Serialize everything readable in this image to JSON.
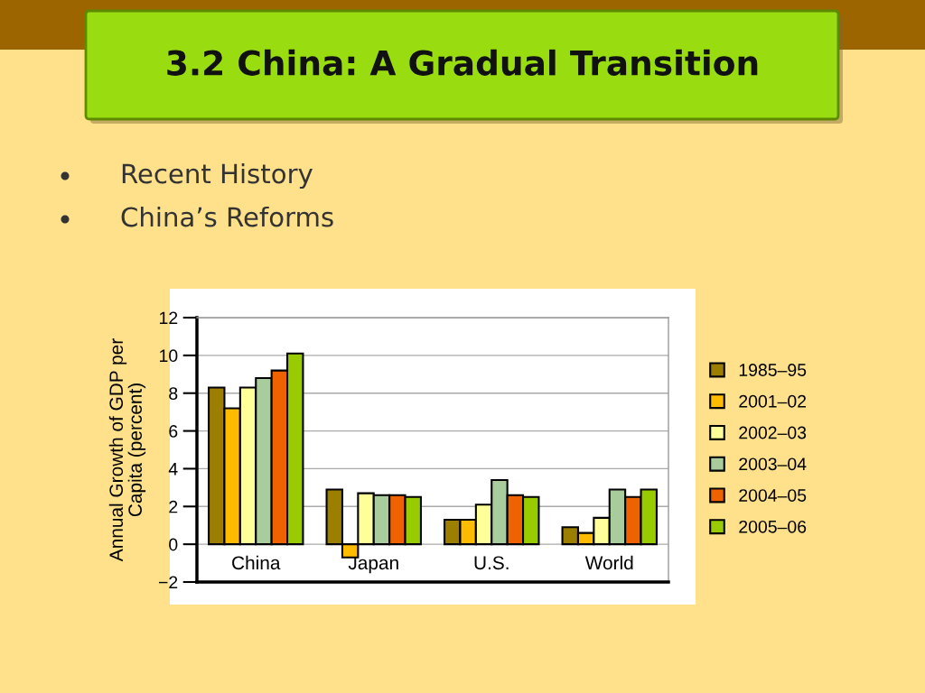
{
  "chart_data": {
    "type": "bar",
    "title": "3.2 China: A Gradual Transition",
    "ylabel": "Annual Growth of GDP per\nCapita (percent)",
    "annotations": [
      "Recent History",
      "China’s Reforms"
    ],
    "categories": [
      "China",
      "Japan",
      "U.S.",
      "World"
    ],
    "series": [
      {
        "name": "1985–95",
        "color": "#9c7e00",
        "values": [
          8.3,
          2.9,
          1.3,
          0.9
        ]
      },
      {
        "name": "2001–02",
        "color": "#ffbb00",
        "values": [
          7.2,
          -0.7,
          1.3,
          0.6
        ]
      },
      {
        "name": "2002–03",
        "color": "#ffff99",
        "values": [
          8.3,
          2.7,
          2.1,
          1.4
        ]
      },
      {
        "name": "2003–04",
        "color": "#a8cc9c",
        "values": [
          8.8,
          2.6,
          3.4,
          2.9
        ]
      },
      {
        "name": "2004–05",
        "color": "#ee6200",
        "values": [
          9.2,
          2.6,
          2.6,
          2.5
        ]
      },
      {
        "name": "2005–06",
        "color": "#99cc00",
        "values": [
          10.1,
          2.5,
          2.5,
          2.9
        ]
      }
    ],
    "ylim": [
      -2,
      12
    ],
    "yticks": [
      {
        "value": -2,
        "label": "−2"
      },
      0,
      2,
      4,
      6,
      8,
      10,
      12
    ],
    "grid": "y",
    "legend": "right"
  }
}
